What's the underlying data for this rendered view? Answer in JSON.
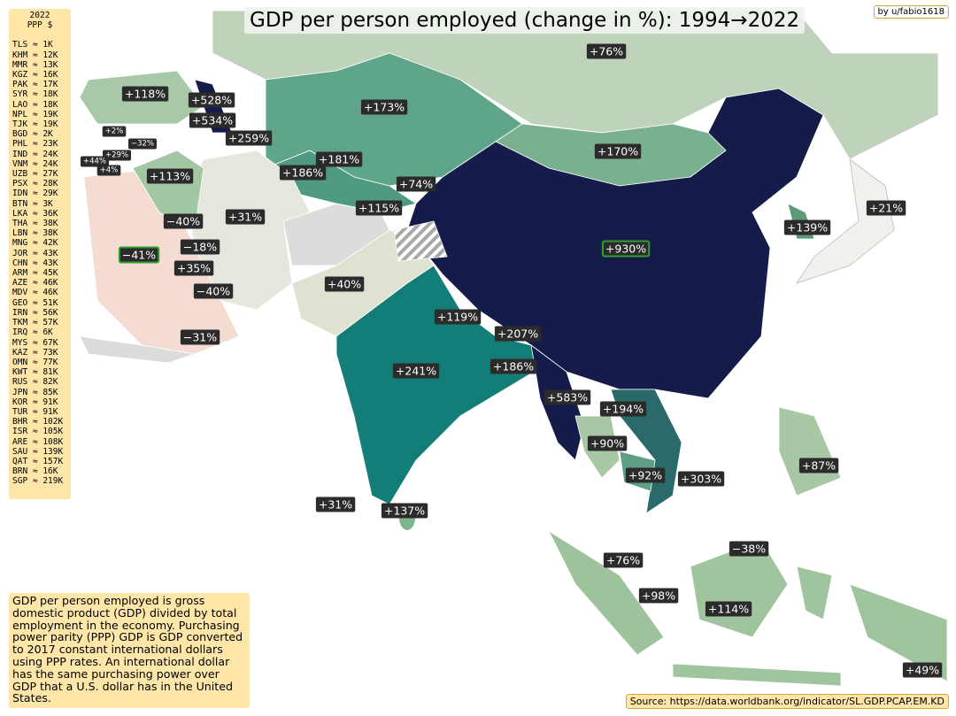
{
  "title": "GDP per person employed (change in %):  1994→2022",
  "credit": "by u/fabio1618",
  "legend": {
    "header": [
      "2022",
      "PPP $"
    ],
    "entries": [
      "TLS ≈ 1K",
      "KHM ≈ 12K",
      "MMR ≈ 13K",
      "KGZ ≈ 16K",
      "PAK ≈ 17K",
      "SYR ≈ 18K",
      "LAO ≈ 18K",
      "NPL ≈ 19K",
      "TJK ≈ 19K",
      "BGD ≈ 2K",
      "PHL ≈ 23K",
      "IND ≈ 24K",
      "VNM ≈ 24K",
      "UZB ≈ 27K",
      "PSX ≈ 28K",
      "IDN ≈ 29K",
      "BTN ≈ 3K",
      "LKA ≈ 36K",
      "THA ≈ 38K",
      "LBN ≈ 38K",
      "MNG ≈ 42K",
      "JOR ≈ 43K",
      "CHN ≈ 43K",
      "ARM ≈ 45K",
      "AZE ≈ 46K",
      "MDV ≈ 46K",
      "GEO ≈ 51K",
      "IRN ≈ 56K",
      "TKM ≈ 57K",
      "IRQ ≈ 6K",
      "MYS ≈ 67K",
      "KAZ ≈ 73K",
      "OMN ≈ 77K",
      "KWT ≈ 81K",
      "RUS ≈ 82K",
      "JPN ≈ 85K",
      "KOR ≈ 91K",
      "TUR ≈ 91K",
      "BHR ≈ 102K",
      "ISR ≈ 105K",
      "ARE ≈ 108K",
      "SAU ≈ 139K",
      "QAT ≈ 157K",
      "BRN ≈ 16K",
      "SGP ≈ 219K"
    ]
  },
  "map_labels": [
    "+76%",
    "+118%",
    "+528%",
    "+534%",
    "+173%",
    "+259%",
    "+2%",
    "−32%",
    "+29%",
    "+44%",
    "+4%",
    "+170%",
    "+181%",
    "+186%",
    "+113%",
    "+74%",
    "+115%",
    "+21%",
    "−40%",
    "+31%",
    "+139%",
    "+930%",
    "−41%",
    "−18%",
    "+35%",
    "−40%",
    "+40%",
    "+119%",
    "+207%",
    "−31%",
    "+186%",
    "+241%",
    "+583%",
    "+194%",
    "+90%",
    "+87%",
    "+92%",
    "+303%",
    "+31%",
    "+137%",
    "−38%",
    "+76%",
    "+98%",
    "+114%",
    "+49%"
  ],
  "note": "GDP per person employed is gross domestic product (GDP) divided by total employment in the economy. Purchasing power parity (PPP) GDP is GDP converted to 2017 constant international dollars using PPP rates. An international dollar has the same purchasing power over GDP that a U.S. dollar has in the United States.",
  "source": "Source: https://data.worldbank.org/indicator/SL.GDP.PCAP.EM.KD"
}
